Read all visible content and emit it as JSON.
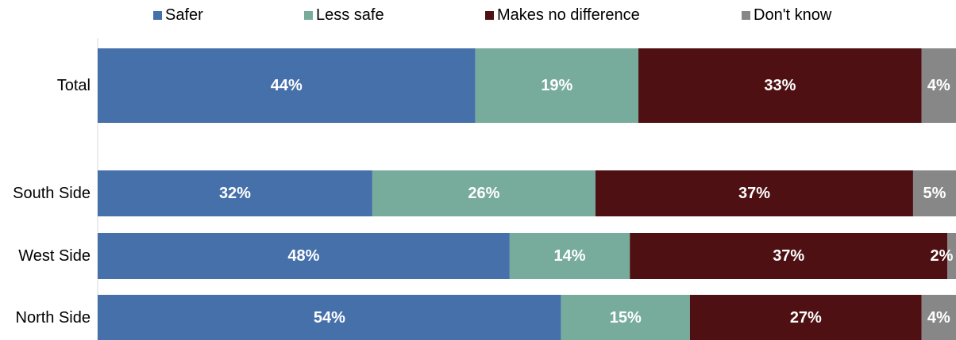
{
  "chart_data": {
    "type": "bar",
    "orientation": "horizontal",
    "stacked": true,
    "title": "",
    "xlabel": "",
    "ylabel": "",
    "xlim": [
      0,
      100
    ],
    "grid": false,
    "legend_position": "top",
    "categories": [
      "Total",
      "South Side",
      "West Side",
      "North Side"
    ],
    "series": [
      {
        "name": "Safer",
        "color": "#4670AA",
        "values": [
          44,
          32,
          48,
          54
        ],
        "labels": [
          "44%",
          "32%",
          "48%",
          "54%"
        ]
      },
      {
        "name": "Less safe",
        "color": "#77AC9C",
        "values": [
          19,
          26,
          14,
          15
        ],
        "labels": [
          "19%",
          "26%",
          "14%",
          "15%"
        ]
      },
      {
        "name": "Makes no difference",
        "color": "#4E1012",
        "values": [
          33,
          37,
          37,
          27
        ],
        "labels": [
          "33%",
          "37%",
          "37%",
          "27%"
        ]
      },
      {
        "name": "Don't know",
        "color": "#878787",
        "values": [
          4,
          5,
          2,
          4
        ],
        "labels": [
          "4%",
          "5%",
          "2%",
          "4%"
        ]
      }
    ]
  }
}
